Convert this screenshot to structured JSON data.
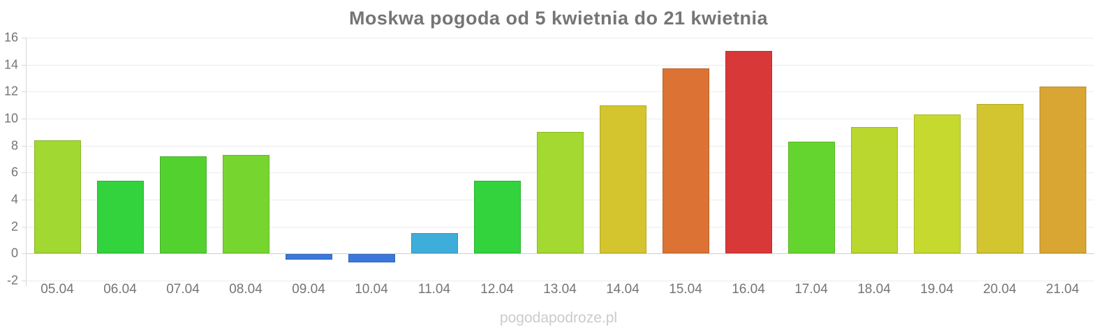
{
  "chart_data": {
    "type": "bar",
    "title": "Moskwa pogoda od 5 kwietnia do 21 kwietnia",
    "categories": [
      "05.04",
      "06.04",
      "07.04",
      "08.04",
      "09.04",
      "10.04",
      "11.04",
      "12.04",
      "13.04",
      "14.04",
      "15.04",
      "16.04",
      "17.04",
      "18.04",
      "19.04",
      "20.04",
      "21.04"
    ],
    "values": [
      8.4,
      5.4,
      7.2,
      7.3,
      -0.4,
      -0.6,
      1.5,
      5.4,
      9.0,
      11.0,
      13.7,
      15.0,
      8.3,
      9.4,
      10.3,
      11.1,
      12.4
    ],
    "bar_colors": [
      "#a2d832",
      "#32d33c",
      "#53d22f",
      "#76d62f",
      "#3c78db",
      "#3c78db",
      "#3fadd9",
      "#32d33c",
      "#a3d930",
      "#d4c52f",
      "#dc7233",
      "#d93838",
      "#64d52e",
      "#b9d72e",
      "#c6d92e",
      "#d2c52f",
      "#d9a634"
    ],
    "xlabel": "",
    "ylabel": "",
    "ylim": [
      -2,
      16
    ],
    "ytick_step": 2,
    "grid": true,
    "legend": "none",
    "watermark": "pogodapodroze.pl",
    "colors": {
      "title_text": "#757575",
      "axis_text": "#757575",
      "gridline": "#ececec",
      "zero_line": "#cfcfcf",
      "axis_line": "#d8d8d8",
      "watermark_text": "#cbcbcb",
      "background": "#ffffff"
    }
  }
}
